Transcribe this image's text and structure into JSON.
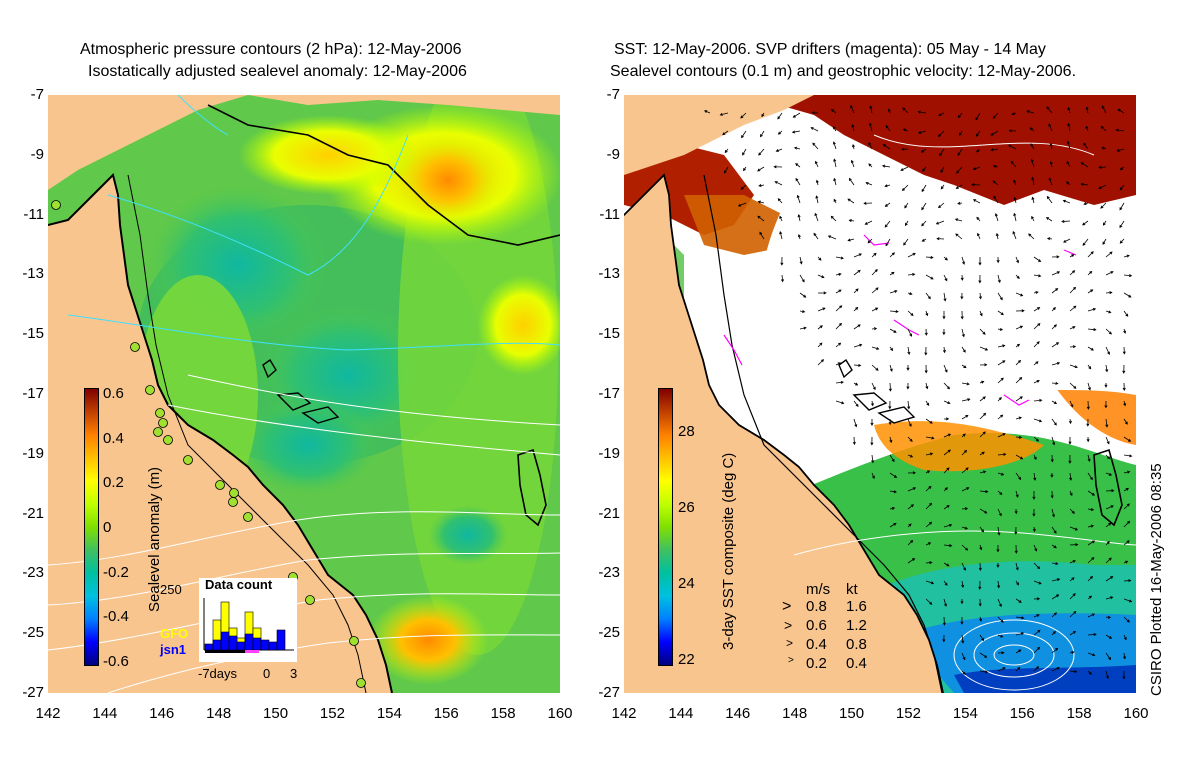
{
  "left_panel": {
    "title_line1": "Atmospheric pressure contours (2 hPa): 12-May-2006",
    "title_line2": "Isostatically adjusted sealevel anomaly: 12-May-2006",
    "colorbar_label": "Sealevel anomaly (m)",
    "colorbar_ticks": [
      "0.6",
      "0.4",
      "0.2",
      "0",
      "-0.2",
      "-0.4",
      "-0.6"
    ],
    "colorbar_colors": [
      "#000080",
      "#0000ff",
      "#0080ff",
      "#00c0e0",
      "#00c0a0",
      "#40c060",
      "#80e000",
      "#c0ff00",
      "#ffff00",
      "#ffc000",
      "#ff8000",
      "#c04000",
      "#800000"
    ],
    "histogram": {
      "title": "Data count",
      "ymax_label": "250",
      "x_labels": [
        "-7days",
        "0",
        "3"
      ],
      "series": [
        {
          "name": "GFO",
          "color": "#ffff00"
        },
        {
          "name": "jsn1",
          "color": "#0000ff"
        }
      ]
    }
  },
  "right_panel": {
    "title_line1": "SST: 12-May-2006. SVP drifters (magenta): 05 May - 14 May",
    "title_line2": "Sealevel contours (0.1 m) and geostrophic velocity: 12-May-2006.",
    "colorbar_label": "3-day SST composite (deg C)",
    "colorbar_ticks": [
      "28",
      "26",
      "24",
      "22"
    ],
    "colorbar_colors": [
      "#000080",
      "#0000ff",
      "#0080ff",
      "#00c0e0",
      "#00c0a0",
      "#40c060",
      "#80e000",
      "#c0ff00",
      "#ffff00",
      "#ffc000",
      "#ff8000",
      "#c04000",
      "#800000"
    ],
    "velocity_legend": {
      "header_ms": "m/s",
      "header_kt": "kt",
      "rows": [
        {
          "ms": "0.8",
          "kt": "1.6"
        },
        {
          "ms": "0.6",
          "kt": "1.2"
        },
        {
          "ms": "0.4",
          "kt": "0.8"
        },
        {
          "ms": "0.2",
          "kt": "0.4"
        }
      ]
    }
  },
  "axes": {
    "y_ticks": [
      "-7",
      "-9",
      "-11",
      "-13",
      "-15",
      "-17",
      "-19",
      "-21",
      "-23",
      "-25",
      "-27"
    ],
    "x_ticks": [
      "142",
      "144",
      "146",
      "148",
      "150",
      "152",
      "154",
      "156",
      "158",
      "160"
    ]
  },
  "credit": "CSIRO Plotted 16-May-2006 08:35",
  "colors": {
    "land": "#f9c58f",
    "sea_base": "#7fd93a",
    "cloud": "#ffffff"
  }
}
